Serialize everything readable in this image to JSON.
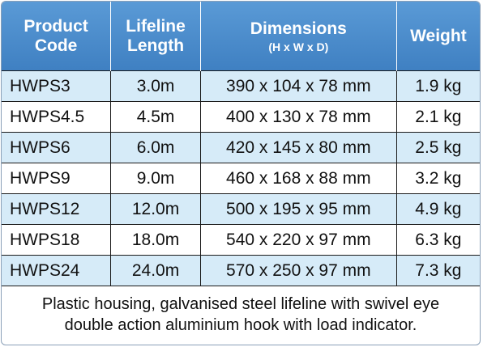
{
  "header": {
    "product_code": [
      "Product",
      "Code"
    ],
    "lifeline_length": [
      "Lifeline",
      "Length"
    ],
    "dimensions": "Dimensions",
    "dimensions_sub": "(H x W x D)",
    "weight": "Weight"
  },
  "rows": [
    {
      "code": "HWPS3",
      "length": "3.0m",
      "dimensions": "390 x 104 x 78 mm",
      "weight": "1.9 kg"
    },
    {
      "code": "HWPS4.5",
      "length": "4.5m",
      "dimensions": "400 x 130 x 78 mm",
      "weight": "2.1 kg"
    },
    {
      "code": "HWPS6",
      "length": "6.0m",
      "dimensions": "420 x 145 x 80 mm",
      "weight": "2.5 kg"
    },
    {
      "code": "HWPS9",
      "length": "9.0m",
      "dimensions": "460 x 168 x 88 mm",
      "weight": "3.2 kg"
    },
    {
      "code": "HWPS12",
      "length": "12.0m",
      "dimensions": "500 x 195 x 95 mm",
      "weight": "4.9 kg"
    },
    {
      "code": "HWPS18",
      "length": "18.0m",
      "dimensions": "540 x 220 x 97 mm",
      "weight": "6.3 kg"
    },
    {
      "code": "HWPS24",
      "length": "24.0m",
      "dimensions": "570 x 250 x 97 mm",
      "weight": "7.3 kg"
    }
  ],
  "footer": [
    "Plastic housing, galvanised steel lifeline with swivel eye",
    "double action aluminium hook with load indicator."
  ],
  "colors": {
    "header_bg": "#4a8ccb",
    "stripe_bg": "#d6ebf8",
    "border": "#1a1a1a"
  }
}
